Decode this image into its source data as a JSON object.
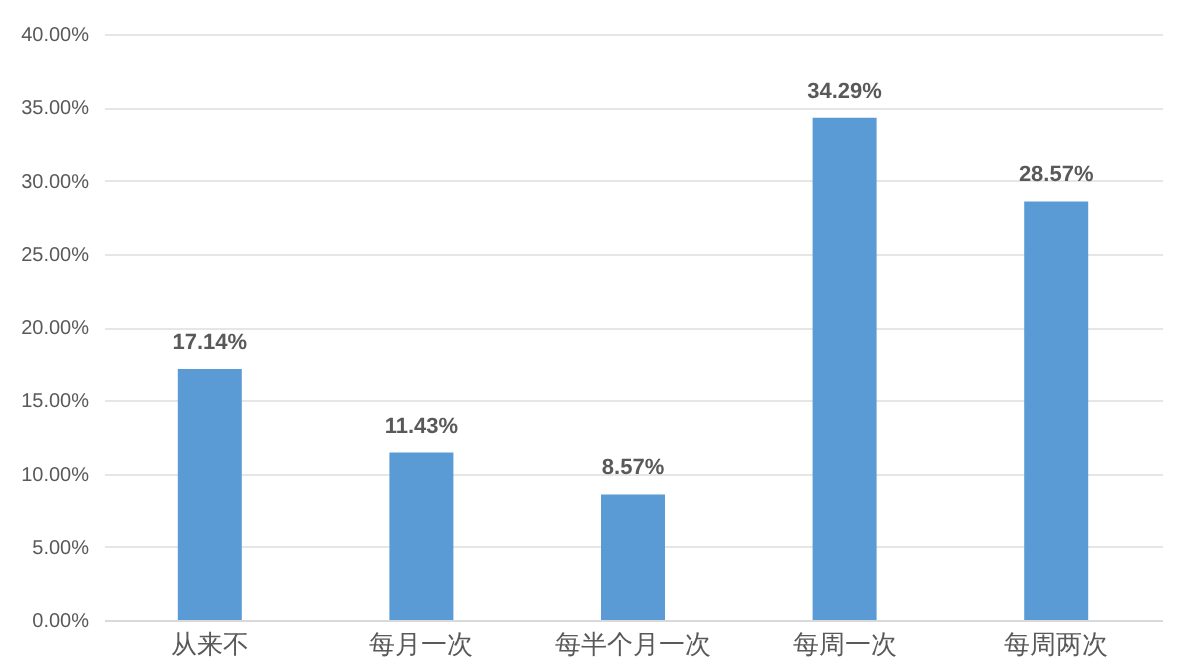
{
  "chart_data": {
    "type": "bar",
    "categories": [
      "从来不",
      "每月一次",
      "每半个月一次",
      "每周一次",
      "每周两次"
    ],
    "values": [
      17.14,
      11.43,
      8.57,
      34.29,
      28.57
    ],
    "color": "#5b9bd5",
    "value_labels": [
      "17.14%",
      "11.43%",
      "8.57%",
      "34.29%",
      "28.57%"
    ],
    "ylim": [
      0,
      40
    ],
    "yticks": [
      {
        "value": 0,
        "label": "0.00%"
      },
      {
        "value": 5,
        "label": "5.00%"
      },
      {
        "value": 10,
        "label": "10.00%"
      },
      {
        "value": 15,
        "label": "15.00%"
      },
      {
        "value": 20,
        "label": "20.00%"
      },
      {
        "value": 25,
        "label": "25.00%"
      },
      {
        "value": 30,
        "label": "30.00%"
      },
      {
        "value": 35,
        "label": "35.00%"
      },
      {
        "value": 40,
        "label": "40.00%"
      }
    ],
    "grid": "y"
  }
}
